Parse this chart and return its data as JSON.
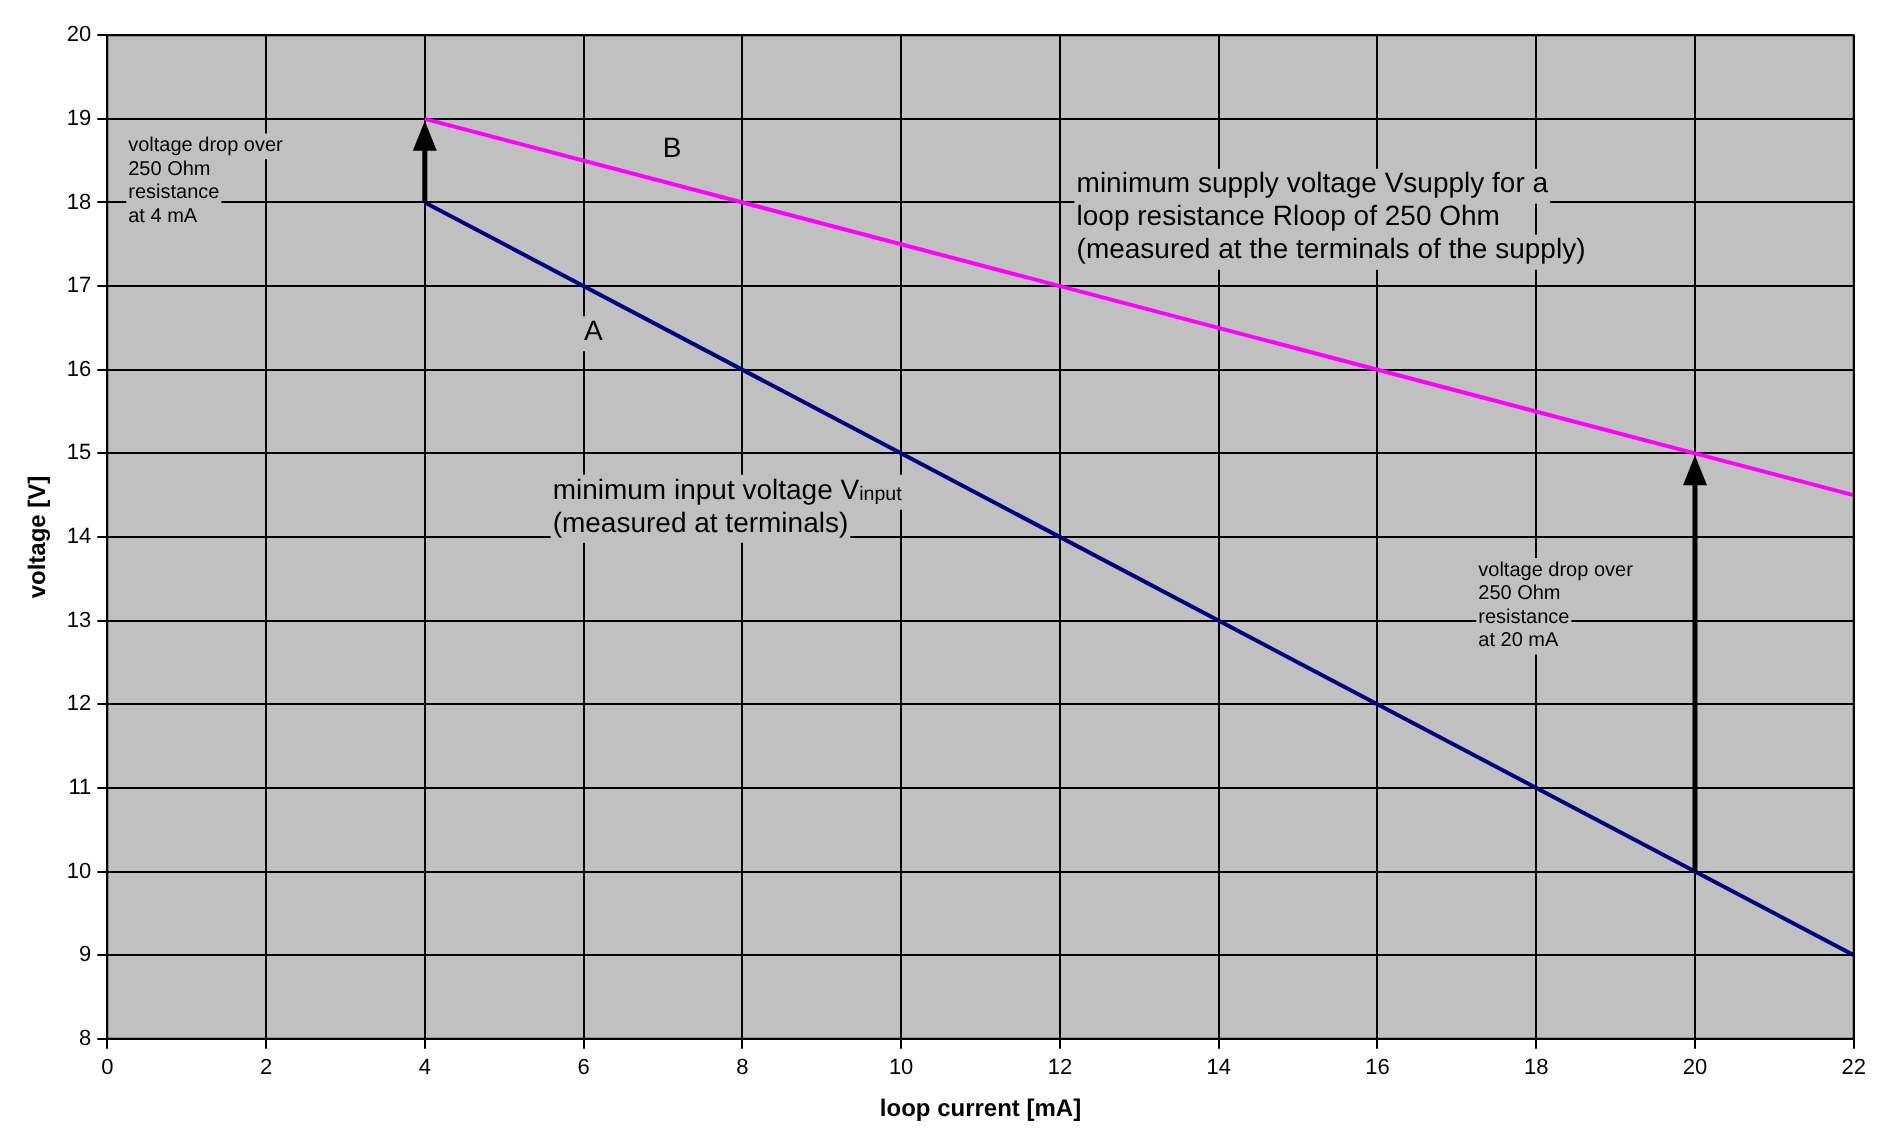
{
  "chart_data": {
    "type": "line",
    "xlabel": "loop current [mA]",
    "ylabel": "voltage [V]",
    "x": [
      4,
      20,
      22
    ],
    "series": [
      {
        "color": "#000080",
        "values": [
          18,
          10,
          9
        ]
      },
      {
        "color": "#ff00ff",
        "values": [
          19,
          15,
          14.5
        ]
      }
    ],
    "xlim": [
      0,
      22
    ],
    "xticks": [
      0,
      2,
      4,
      6,
      8,
      10,
      12,
      14,
      16,
      18,
      20,
      22
    ],
    "ylim": [
      8,
      20
    ],
    "yticks": [
      8,
      9,
      10,
      11,
      12,
      13,
      14,
      15,
      16,
      17,
      18,
      19,
      20
    ],
    "grid": true,
    "legend": false,
    "marker": "none",
    "line_style": "solid",
    "annotations": [
      "voltage drop over\n250 Ohm\nresistance\nat 4 mA",
      "B",
      "A",
      "minimum supply voltage Vsupply for a\nloop resistance Rloop of 250 Ohm\n(measured at the terminals of the supply)",
      "minimum input voltage V$_{input}$\n(measured at terminals)",
      "voltage drop over\n250 Ohm\nresistance\nat 20 mA"
    ]
  }
}
